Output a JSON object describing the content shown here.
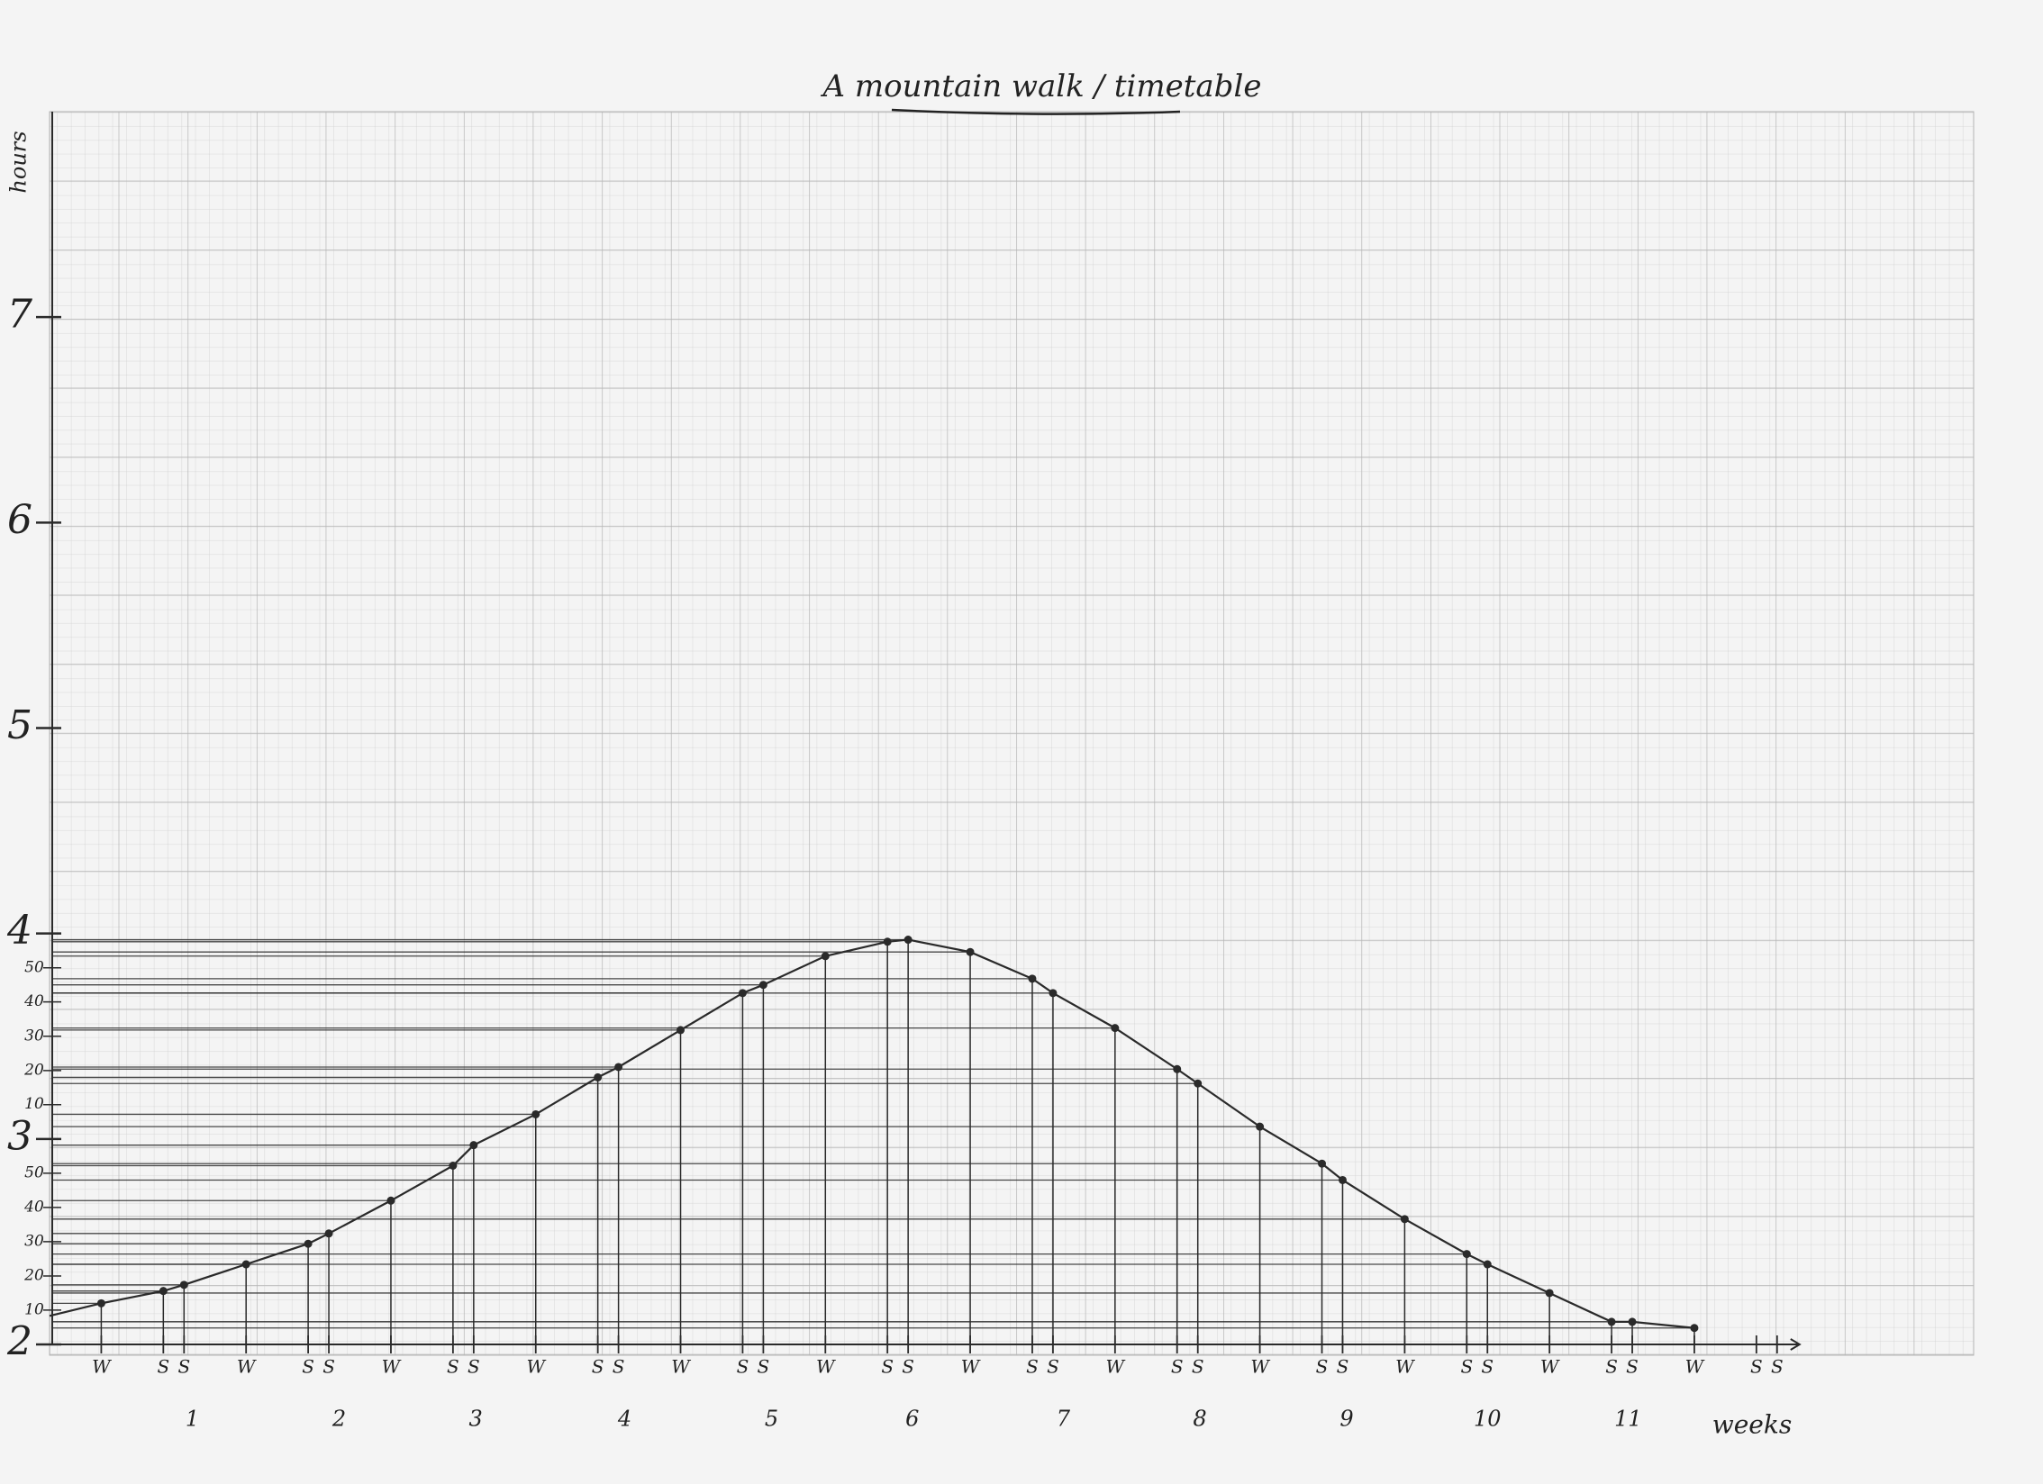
{
  "chart_data": {
    "type": "line",
    "title": "A mountain walk / timetable",
    "x_label": "weeks",
    "y_label": "hours",
    "x": [
      3,
      6,
      7,
      10,
      13,
      14,
      17,
      20,
      21,
      24,
      27,
      28,
      31,
      34,
      35,
      38,
      41,
      42,
      45,
      48,
      49,
      52,
      55,
      56,
      59,
      62,
      63,
      66,
      69,
      70,
      73,
      76,
      77,
      80
    ],
    "values": [
      2.2,
      2.26,
      2.29,
      2.39,
      2.49,
      2.54,
      2.7,
      2.87,
      2.97,
      3.12,
      3.3,
      3.35,
      3.53,
      3.71,
      3.75,
      3.89,
      3.96,
      3.97,
      3.91,
      3.78,
      3.71,
      3.54,
      3.34,
      3.27,
      3.06,
      2.88,
      2.8,
      2.61,
      2.44,
      2.39,
      2.25,
      2.11,
      2.11,
      2.08
    ],
    "color": "#2a2a2a",
    "drop_lines": true,
    "xlim": [
      0.5,
      93.5
    ],
    "ylim": [
      2,
      8
    ],
    "yticks": [
      2,
      {
        "value": 2.167,
        "label": "10"
      },
      {
        "value": 2.333,
        "label": "20"
      },
      {
        "value": 2.5,
        "label": "30"
      },
      {
        "value": 2.667,
        "label": "40"
      },
      {
        "value": 2.833,
        "label": "50"
      },
      3,
      {
        "value": 3.167,
        "label": "10"
      },
      {
        "value": 3.333,
        "label": "20"
      },
      {
        "value": 3.5,
        "label": "30"
      },
      {
        "value": 3.667,
        "label": "40"
      },
      {
        "value": 3.833,
        "label": "50"
      },
      4,
      5,
      6,
      7
    ],
    "xticks": [
      {
        "value": 3,
        "label": "W"
      },
      {
        "value": 6,
        "label": "S"
      },
      {
        "value": 7,
        "label": "S"
      },
      {
        "value": 10,
        "label": "W"
      },
      {
        "value": 13,
        "label": "S"
      },
      {
        "value": 14,
        "label": "S"
      },
      {
        "value": 17,
        "label": "W"
      },
      {
        "value": 20,
        "label": "S"
      },
      {
        "value": 21,
        "label": "S"
      },
      {
        "value": 24,
        "label": "W"
      },
      {
        "value": 27,
        "label": "S"
      },
      {
        "value": 28,
        "label": "S"
      },
      {
        "value": 31,
        "label": "W"
      },
      {
        "value": 34,
        "label": "S"
      },
      {
        "value": 35,
        "label": "S"
      },
      {
        "value": 38,
        "label": "W"
      },
      {
        "value": 41,
        "label": "S"
      },
      {
        "value": 42,
        "label": "S"
      },
      {
        "value": 45,
        "label": "W"
      },
      {
        "value": 48,
        "label": "S"
      },
      {
        "value": 49,
        "label": "S"
      },
      {
        "value": 52,
        "label": "W"
      },
      {
        "value": 55,
        "label": "S"
      },
      {
        "value": 56,
        "label": "S"
      },
      {
        "value": 59,
        "label": "W"
      },
      {
        "value": 62,
        "label": "S"
      },
      {
        "value": 63,
        "label": "S"
      },
      {
        "value": 66,
        "label": "W"
      },
      {
        "value": 69,
        "label": "S"
      },
      {
        "value": 70,
        "label": "S"
      },
      {
        "value": 73,
        "label": "W"
      },
      {
        "value": 76,
        "label": "S"
      },
      {
        "value": 77,
        "label": "S"
      },
      {
        "value": 80,
        "label": "W"
      },
      {
        "value": 83,
        "label": "S"
      },
      {
        "value": 84,
        "label": "S"
      }
    ],
    "week_ticks": [
      {
        "value": 7.4,
        "label": "1"
      },
      {
        "value": 14.5,
        "label": "2"
      },
      {
        "value": 21.1,
        "label": "3"
      },
      {
        "value": 28.3,
        "label": "4"
      },
      {
        "value": 35.4,
        "label": "5"
      },
      {
        "value": 42.2,
        "label": "6"
      },
      {
        "value": 49.5,
        "label": "7"
      },
      {
        "value": 56.1,
        "label": "8"
      },
      {
        "value": 63.2,
        "label": "9"
      },
      {
        "value": 70,
        "label": "10"
      },
      {
        "value": 76.8,
        "label": "11"
      }
    ]
  }
}
